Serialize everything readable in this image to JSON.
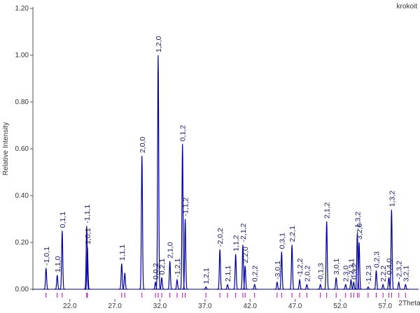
{
  "chart_data": {
    "type": "line",
    "title": "krokoit",
    "ylabel": "Relative Intensity",
    "xlabel": "2Theta",
    "color": "#0000a0",
    "tick_color": "#c000c0",
    "xlim": [
      17.9,
      60.7
    ],
    "ylim": [
      0,
      1.2
    ],
    "xticks": [
      {
        "value": 22,
        "label": "22.0"
      },
      {
        "value": 27,
        "label": "27.0"
      },
      {
        "value": 32,
        "label": "32.0"
      },
      {
        "value": 37,
        "label": "37.0"
      },
      {
        "value": 42,
        "label": "42.0"
      },
      {
        "value": 47,
        "label": "47.0"
      },
      {
        "value": 52,
        "label": "52.0"
      },
      {
        "value": 57,
        "label": "57.0"
      }
    ],
    "yticks": [
      {
        "value": 0,
        "label": "0.00"
      },
      {
        "value": 0.2,
        "label": "0.20"
      },
      {
        "value": 0.4,
        "label": "0.40"
      },
      {
        "value": 0.6,
        "label": "0.60"
      },
      {
        "value": 0.8,
        "label": "0.80"
      },
      {
        "value": 1,
        "label": "1.00"
      },
      {
        "value": 1.2,
        "label": "1.20"
      }
    ],
    "x": [
      19.36,
      20.6,
      21.15,
      23.87,
      23.95,
      27.75,
      28.1,
      30.0,
      31.5,
      31.8,
      32.2,
      33.1,
      33.9,
      34.5,
      34.8,
      37.1,
      38.65,
      39.5,
      40.4,
      41.2,
      41.45,
      42.5,
      45.0,
      45.5,
      46.65,
      47.5,
      48.3,
      49.8,
      50.5,
      51.55,
      52.6,
      53.2,
      53.5,
      53.9,
      54.1,
      55.1,
      56.0,
      56.75,
      57.4,
      57.7,
      58.5,
      59.25
    ],
    "values": [
      0.09,
      0.06,
      0.25,
      0.27,
      0.18,
      0.11,
      0.07,
      0.57,
      0.03,
      1.0,
      0.05,
      0.12,
      0.04,
      0.62,
      0.3,
      0.01,
      0.17,
      0.02,
      0.15,
      0.19,
      0.1,
      0.02,
      0.03,
      0.16,
      0.19,
      0.04,
      0.02,
      0.02,
      0.29,
      0.05,
      0.02,
      0.04,
      0.03,
      0.24,
      0.2,
      0.01,
      0.08,
      0.02,
      0.05,
      0.34,
      0.03,
      0.02
    ],
    "labels": [
      "-1,0,1",
      "1,1,0",
      "0,1,1",
      "-1,1,1",
      "1,0,1",
      "1,1,1",
      null,
      "2,0,0",
      "0,0,2",
      "1,2,0",
      "0,2,1",
      "2,1,0",
      "-1,2,1",
      "0,1,2",
      "-1,1,2",
      "1,2,1",
      "-2,0,2",
      "2,1,1",
      "1,1,2",
      "-2,1,2",
      "2,2,0",
      "0,2,2",
      "-3,0,1",
      "0,3,1",
      "2,2,1",
      "-1,2,2",
      "2,0,2",
      "-0,1,3",
      "2,1,2",
      "3,0,1",
      "2,3,0",
      "-2,3,1",
      "0,3,2",
      "-1,3,2",
      "3,2,0",
      "-1,2,3",
      "0,2,3",
      "2,2,2",
      "0,4,0",
      "1,3,2",
      "-2,3,2",
      "3,2,1"
    ]
  }
}
